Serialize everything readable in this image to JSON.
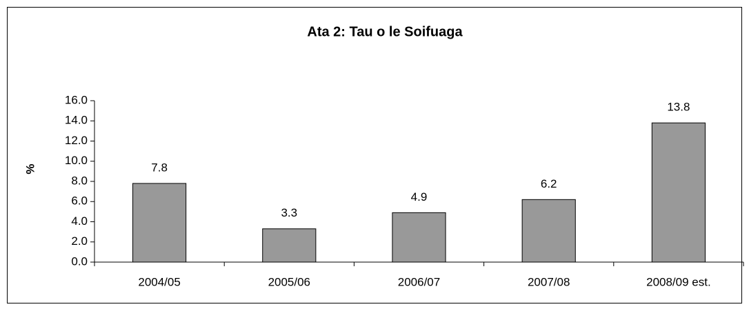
{
  "chart_data": {
    "type": "bar",
    "title": "Ata 2: Tau o le Soifuaga",
    "y_label": "%",
    "categories": [
      "2004/05",
      "2005/06",
      "2006/07",
      "2007/08",
      "2008/09 est."
    ],
    "values": [
      7.8,
      3.3,
      4.9,
      6.2,
      13.8
    ],
    "color": "#999999",
    "ylim": [
      0,
      16
    ],
    "yticks": [
      {
        "value": 0,
        "label": "0.0"
      },
      {
        "value": 2,
        "label": "2.0"
      },
      {
        "value": 4,
        "label": "4.0"
      },
      {
        "value": 6,
        "label": "6.0"
      },
      {
        "value": 8,
        "label": "8.0"
      },
      {
        "value": 10,
        "label": "10.0"
      },
      {
        "value": 12,
        "label": "12.0"
      },
      {
        "value": 14,
        "label": "14.0"
      },
      {
        "value": 16,
        "label": "16.0"
      }
    ],
    "grid": false
  }
}
